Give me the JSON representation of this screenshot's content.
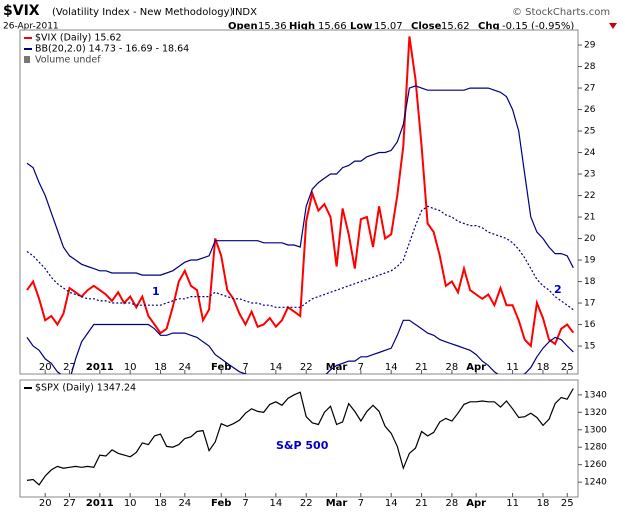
{
  "header": {
    "symbol": "$VIX",
    "name": "(Volatility Index - New Methodology)",
    "exchange": "INDX",
    "date": "26-Apr-2011",
    "source": "© StockCharts.com",
    "quote": [
      {
        "label": "Open",
        "value": "15.36"
      },
      {
        "label": "High",
        "value": "15.66"
      },
      {
        "label": "Low",
        "value": "15.07"
      },
      {
        "label": "Close",
        "value": "15.62"
      },
      {
        "label": "Chg",
        "value": "-0.15 (-0.95%)"
      }
    ]
  },
  "chart_data": [
    {
      "type": "line",
      "categories": [
        null,
        null,
        null,
        "20",
        null,
        null,
        null,
        "27",
        null,
        null,
        null,
        null,
        "2011",
        null,
        null,
        null,
        null,
        "10",
        null,
        null,
        null,
        null,
        "18",
        null,
        null,
        null,
        "24",
        null,
        null,
        null,
        null,
        null,
        "Feb",
        null,
        null,
        null,
        "7",
        null,
        null,
        null,
        null,
        "14",
        null,
        null,
        null,
        null,
        "22",
        null,
        null,
        null,
        null,
        "Mar",
        null,
        null,
        null,
        "7",
        null,
        null,
        null,
        null,
        "14",
        null,
        null,
        null,
        null,
        "21",
        null,
        null,
        null,
        null,
        "28",
        null,
        null,
        null,
        "Apr",
        null,
        null,
        null,
        null,
        null,
        "11",
        null,
        null,
        null,
        null,
        "18",
        null,
        null,
        null,
        "25",
        null
      ],
      "ylim": [
        13.7,
        29.7
      ],
      "yticks": [
        15,
        16,
        17,
        18,
        19,
        20,
        21,
        22,
        23,
        24,
        25,
        26,
        27,
        28,
        29
      ],
      "volume_note": "Volume undef",
      "annotations": [
        "1",
        "2"
      ],
      "series": [
        {
          "name": "$VIX (Daily) 15.62",
          "color": "#ff0000",
          "values": [
            17.6,
            18.0,
            17.2,
            16.2,
            16.4,
            16.0,
            16.5,
            17.7,
            17.5,
            17.3,
            17.6,
            17.8,
            17.6,
            17.4,
            17.1,
            17.5,
            17.0,
            17.3,
            16.8,
            17.3,
            16.4,
            16.0,
            15.6,
            15.8,
            16.8,
            18.0,
            18.5,
            17.8,
            17.6,
            16.2,
            16.7,
            20.0,
            19.2,
            17.6,
            17.2,
            16.5,
            16.0,
            16.6,
            15.9,
            16.0,
            16.3,
            15.9,
            16.2,
            16.8,
            16.6,
            16.4,
            20.8,
            22.1,
            21.3,
            21.6,
            21.0,
            18.7,
            21.4,
            20.2,
            18.6,
            20.9,
            21.0,
            19.6,
            21.5,
            20.0,
            20.2,
            22.0,
            24.3,
            29.4,
            27.4,
            24.3,
            20.7,
            20.3,
            19.2,
            17.8,
            18.0,
            17.5,
            18.6,
            17.6,
            17.4,
            17.2,
            17.4,
            16.9,
            17.7,
            16.9,
            16.9,
            16.2,
            15.3,
            15.0,
            17.0,
            16.3,
            15.3,
            15.1,
            15.8,
            16.0,
            15.62
          ]
        },
        {
          "name": "BB(20,2.0) 14.73 - 16.69 - 18.64",
          "color": "#000080",
          "values": [
            23.5,
            23.3,
            22.6,
            22.0,
            21.2,
            20.4,
            19.6,
            19.2,
            19.0,
            18.8,
            18.7,
            18.6,
            18.5,
            18.5,
            18.4,
            18.4,
            18.4,
            18.4,
            18.4,
            18.3,
            18.3,
            18.3,
            18.3,
            18.4,
            18.5,
            18.7,
            18.9,
            19.0,
            19.0,
            19.1,
            19.2,
            19.9,
            19.9,
            19.9,
            19.9,
            19.9,
            19.9,
            19.9,
            19.9,
            19.8,
            19.8,
            19.8,
            19.8,
            19.7,
            19.7,
            19.6,
            21.5,
            22.3,
            22.6,
            22.8,
            23.0,
            23.0,
            23.3,
            23.4,
            23.6,
            23.6,
            23.8,
            23.9,
            24.0,
            24.0,
            24.1,
            24.5,
            25.3,
            27.0,
            27.1,
            27.0,
            26.9,
            26.9,
            26.9,
            26.9,
            26.9,
            26.9,
            26.9,
            27.0,
            27.0,
            27.0,
            27.0,
            26.9,
            26.8,
            26.6,
            26.0,
            25.0,
            23.0,
            21.0,
            20.3,
            20.0,
            19.6,
            19.3,
            19.3,
            19.2,
            18.64
          ]
        },
        {
          "color": "#000080",
          "dash": "2,2",
          "values": [
            19.4,
            19.2,
            18.9,
            18.6,
            18.2,
            17.9,
            17.7,
            17.5,
            17.4,
            17.3,
            17.2,
            17.2,
            17.1,
            17.1,
            17.0,
            17.0,
            17.0,
            17.0,
            16.9,
            16.9,
            16.9,
            16.9,
            16.9,
            17.0,
            17.1,
            17.2,
            17.2,
            17.3,
            17.3,
            17.3,
            17.3,
            17.5,
            17.4,
            17.3,
            17.2,
            17.2,
            17.1,
            17.0,
            17.0,
            16.9,
            16.9,
            16.8,
            16.8,
            16.8,
            16.8,
            16.8,
            17.0,
            17.2,
            17.3,
            17.4,
            17.5,
            17.6,
            17.7,
            17.8,
            17.9,
            18.0,
            18.1,
            18.2,
            18.3,
            18.4,
            18.5,
            18.7,
            19.0,
            19.8,
            20.6,
            21.3,
            21.5,
            21.4,
            21.3,
            21.1,
            21.0,
            20.8,
            20.7,
            20.6,
            20.6,
            20.5,
            20.3,
            20.2,
            20.1,
            20.0,
            19.8,
            19.5,
            19.1,
            18.6,
            18.1,
            17.8,
            17.6,
            17.3,
            17.1,
            16.9,
            16.69
          ]
        },
        {
          "color": "#000080",
          "values": [
            15.4,
            15.0,
            14.8,
            14.4,
            14.2,
            13.8,
            13.6,
            13.4,
            14.4,
            15.2,
            15.6,
            16.0,
            16.0,
            16.0,
            16.0,
            16.0,
            16.0,
            16.0,
            16.0,
            16.0,
            16.0,
            15.8,
            15.5,
            15.5,
            15.6,
            15.6,
            15.6,
            15.5,
            15.4,
            15.2,
            15.0,
            14.6,
            14.4,
            14.2,
            14.0,
            13.8,
            13.7,
            13.6,
            13.5,
            13.5,
            13.5,
            13.5,
            13.5,
            13.6,
            13.6,
            13.6,
            13.2,
            13.3,
            13.5,
            13.6,
            13.9,
            14.1,
            14.2,
            14.3,
            14.3,
            14.5,
            14.5,
            14.6,
            14.7,
            14.8,
            14.9,
            15.5,
            16.2,
            16.2,
            16.0,
            15.8,
            15.6,
            15.5,
            15.3,
            15.2,
            15.1,
            15.0,
            14.9,
            14.8,
            14.6,
            14.3,
            14.1,
            13.8,
            13.6,
            13.5,
            13.5,
            13.6,
            13.7,
            14.0,
            14.5,
            14.9,
            15.2,
            15.4,
            15.3,
            15.0,
            14.73
          ]
        }
      ]
    },
    {
      "type": "line",
      "categories": [
        null,
        null,
        null,
        "20",
        null,
        null,
        null,
        "27",
        null,
        null,
        null,
        null,
        "2011",
        null,
        null,
        null,
        null,
        "10",
        null,
        null,
        null,
        null,
        "18",
        null,
        null,
        null,
        "24",
        null,
        null,
        null,
        null,
        null,
        "Feb",
        null,
        null,
        null,
        "7",
        null,
        null,
        null,
        null,
        "14",
        null,
        null,
        null,
        null,
        "22",
        null,
        null,
        null,
        null,
        "Mar",
        null,
        null,
        null,
        "7",
        null,
        null,
        null,
        null,
        "14",
        null,
        null,
        null,
        null,
        "21",
        null,
        null,
        null,
        null,
        "28",
        null,
        null,
        null,
        "Apr",
        null,
        null,
        null,
        null,
        null,
        "11",
        null,
        null,
        null,
        null,
        "18",
        null,
        null,
        null,
        "25",
        null
      ],
      "ylim": [
        1223,
        1357
      ],
      "yticks": [
        1240,
        1260,
        1280,
        1300,
        1320,
        1340
      ],
      "annotations": [
        "S&P 500"
      ],
      "series": [
        {
          "name": "$SPX (Daily) 1347.24",
          "color": "#000000",
          "values": [
            1242,
            1243,
            1237,
            1247,
            1254,
            1258,
            1256,
            1257,
            1258,
            1257,
            1258,
            1257,
            1271,
            1270,
            1277,
            1273,
            1271,
            1269,
            1274,
            1285,
            1283,
            1293,
            1295,
            1281,
            1280,
            1283,
            1290,
            1292,
            1298,
            1299,
            1276,
            1286,
            1307,
            1304,
            1307,
            1311,
            1319,
            1324,
            1321,
            1320,
            1329,
            1332,
            1328,
            1336,
            1340,
            1343,
            1315,
            1308,
            1306,
            1320,
            1327,
            1306,
            1309,
            1330,
            1321,
            1310,
            1321,
            1328,
            1321,
            1304,
            1296,
            1281,
            1256,
            1273,
            1279,
            1298,
            1293,
            1297,
            1309,
            1313,
            1310,
            1319,
            1329,
            1332,
            1332,
            1333,
            1332,
            1332,
            1326,
            1333,
            1324,
            1314,
            1315,
            1319,
            1314,
            1305,
            1312,
            1330,
            1337,
            1335,
            1347.24
          ]
        }
      ]
    }
  ]
}
